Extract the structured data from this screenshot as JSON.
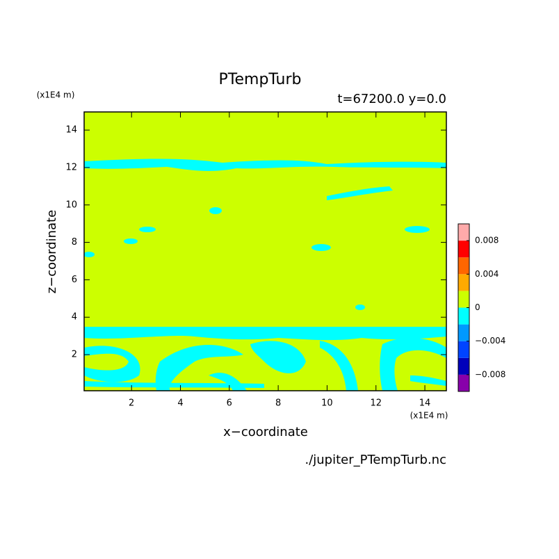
{
  "chart_data": {
    "type": "contour",
    "title": "PTempTurb",
    "subtitle": "t=67200.0 y=0.0",
    "x_label": "x−coordinate",
    "y_label": "z−coordinate",
    "x_unit": "(x1E4 m)",
    "y_unit": "(x1E4 m)",
    "source": "./jupiter_PTempTurb.nc",
    "xlim": [
      0.06,
      14.88
    ],
    "ylim": [
      0.07,
      14.97
    ],
    "xticks": [
      2,
      4,
      6,
      8,
      10,
      12,
      14
    ],
    "yticks": [
      2,
      4,
      6,
      8,
      10,
      12,
      14
    ],
    "levels": [
      -0.01,
      -0.008,
      -0.006,
      -0.004,
      -0.002,
      0,
      0.002,
      0.004,
      0.006,
      0.008,
      0.01
    ],
    "level_colors": [
      "#8800aa",
      "#0000bb",
      "#0044ff",
      "#0099ff",
      "#00ffff",
      "#ccff00",
      "#ffaa00",
      "#ff6600",
      "#ff0000",
      "#ffaaaa"
    ],
    "colorbar_ticks": [
      {
        "value": -0.008,
        "label": "−0.008"
      },
      {
        "value": -0.004,
        "label": "−0.004"
      },
      0,
      0.004,
      0.008
    ]
  }
}
